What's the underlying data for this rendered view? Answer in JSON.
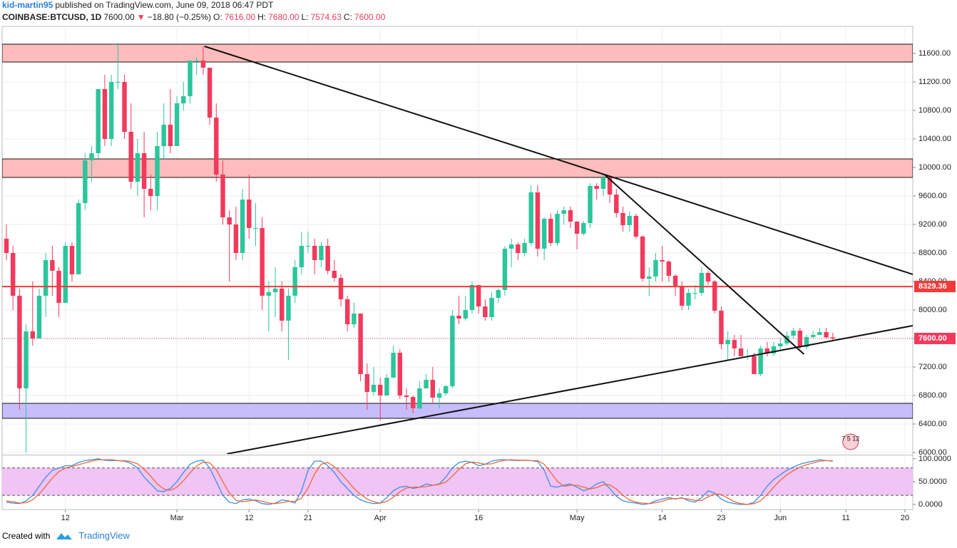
{
  "header": {
    "author": "kid-martin95",
    "published": "published on TradingView.com, June 09, 2018 06:47 PDT",
    "symbol": "COINBASE:BTCUSD, 1D",
    "last": "7600.00",
    "arrow": "▼",
    "change": "−18.80 (−0.25%)",
    "open_label": "O:",
    "open": "7616.00",
    "high_label": "H:",
    "high": "7680.00",
    "low_label": "L:",
    "low": "7574.63",
    "close_label": "C:",
    "close": "7600.00"
  },
  "chart_data": [
    {
      "type": "candlestick",
      "up_color": "#2bc69b",
      "down_color": "#f23a5d",
      "grid": true,
      "xlim": [
        -0.65,
        138.2
      ],
      "ylim": [
        5980,
        11980
      ],
      "xticks": [
        {
          "value": 9,
          "label": "12"
        },
        {
          "value": 26,
          "label": "Mar"
        },
        {
          "value": 37,
          "label": "12"
        },
        {
          "value": 46,
          "label": "21"
        },
        {
          "value": 57,
          "label": "Apr"
        },
        {
          "value": 72,
          "label": "16"
        },
        {
          "value": 87,
          "label": "May"
        },
        {
          "value": 100,
          "label": "14"
        },
        {
          "value": 109,
          "label": "23"
        },
        {
          "value": 118,
          "label": "Jun"
        },
        {
          "value": 128,
          "label": "11"
        },
        {
          "value": 137,
          "label": "20"
        }
      ],
      "yticks": [
        {
          "value": 6000,
          "label": "6000.00"
        },
        {
          "value": 6400,
          "label": "6400.00"
        },
        {
          "value": 6800,
          "label": "6800.00"
        },
        {
          "value": 7200,
          "label": "7200.00"
        },
        {
          "value": 7600,
          "label": "7600.00"
        },
        {
          "value": 8000,
          "label": "8000.00"
        },
        {
          "value": 8400,
          "label": "8400.00"
        },
        {
          "value": 8800,
          "label": "8800.00"
        },
        {
          "value": 9200,
          "label": "9200.00"
        },
        {
          "value": 9600,
          "label": "9600.00"
        },
        {
          "value": 10000,
          "label": "10000.00"
        },
        {
          "value": 10400,
          "label": "10400.00"
        },
        {
          "value": 10800,
          "label": "10800.00"
        },
        {
          "value": 11200,
          "label": "11200.00"
        },
        {
          "value": 11600,
          "label": "11600.00"
        }
      ],
      "candles": [
        [
          9000,
          9200,
          8700,
          8800
        ],
        [
          8800,
          8900,
          8000,
          8200
        ],
        [
          8200,
          8300,
          6600,
          6900
        ],
        [
          6900,
          7800,
          6000,
          7700
        ],
        [
          7700,
          8400,
          7500,
          7600
        ],
        [
          7600,
          8300,
          7600,
          8200
        ],
        [
          8200,
          8800,
          7900,
          8700
        ],
        [
          8700,
          8900,
          8200,
          8550
        ],
        [
          8550,
          8600,
          7900,
          8100
        ],
        [
          8100,
          8950,
          8100,
          8900
        ],
        [
          8900,
          8950,
          8400,
          8500
        ],
        [
          8500,
          9550,
          8500,
          9500
        ],
        [
          9500,
          10200,
          9400,
          10100
        ],
        [
          10100,
          10300,
          9800,
          10200
        ],
        [
          10200,
          11100,
          10100,
          11100
        ],
        [
          11100,
          11300,
          10300,
          10400
        ],
        [
          10400,
          11300,
          10300,
          11200
        ],
        [
          11200,
          11750,
          11100,
          11200
        ],
        [
          11200,
          11300,
          10400,
          10500
        ],
        [
          10500,
          10900,
          9700,
          9800
        ],
        [
          9800,
          10400,
          9600,
          10200
        ],
        [
          10200,
          10500,
          9300,
          9700
        ],
        [
          9700,
          9900,
          9400,
          9600
        ],
        [
          9600,
          10500,
          9400,
          10300
        ],
        [
          10300,
          10900,
          10100,
          10600
        ],
        [
          10600,
          11100,
          10200,
          10300
        ],
        [
          10300,
          11000,
          10300,
          10900
        ],
        [
          10900,
          11200,
          10800,
          11000
        ],
        [
          11000,
          11500,
          10900,
          11500
        ],
        [
          11500,
          11550,
          11300,
          11500
        ],
        [
          11500,
          11700,
          11300,
          11400
        ],
        [
          11400,
          11400,
          10600,
          10700
        ],
        [
          10700,
          10900,
          9800,
          9900
        ],
        [
          9900,
          10100,
          9200,
          9300
        ],
        [
          9300,
          9400,
          8400,
          9200
        ],
        [
          9200,
          9450,
          8700,
          8800
        ],
        [
          8800,
          9700,
          8700,
          9550
        ],
        [
          9550,
          9900,
          9000,
          9150
        ],
        [
          9150,
          9500,
          8900,
          9150
        ],
        [
          9150,
          9300,
          8000,
          8200
        ],
        [
          8200,
          8400,
          7700,
          8250
        ],
        [
          8250,
          8600,
          7900,
          8300
        ],
        [
          8300,
          8400,
          7700,
          7850
        ],
        [
          7850,
          8300,
          7300,
          8200
        ],
        [
          8200,
          8700,
          8100,
          8600
        ],
        [
          8600,
          9100,
          8500,
          8900
        ],
        [
          8900,
          9100,
          8800,
          8900
        ],
        [
          8900,
          9000,
          8500,
          8700
        ],
        [
          8700,
          8950,
          8600,
          8900
        ],
        [
          8900,
          9000,
          8500,
          8550
        ],
        [
          8550,
          8700,
          8400,
          8450
        ],
        [
          8450,
          8500,
          8050,
          8150
        ],
        [
          8150,
          8200,
          7700,
          7800
        ],
        [
          7800,
          8100,
          7750,
          7950
        ],
        [
          7950,
          7950,
          7000,
          7100
        ],
        [
          7100,
          7250,
          6600,
          6850
        ],
        [
          6850,
          7200,
          6800,
          6950
        ],
        [
          6950,
          7050,
          6450,
          6800
        ],
        [
          6800,
          7100,
          6800,
          7050
        ],
        [
          7050,
          7500,
          7050,
          7400
        ],
        [
          7400,
          7450,
          6750,
          6800
        ],
        [
          6800,
          6900,
          6600,
          6780
        ],
        [
          6780,
          6800,
          6550,
          6620
        ],
        [
          6620,
          7000,
          6600,
          6900
        ],
        [
          6900,
          7100,
          6900,
          7020
        ],
        [
          7020,
          7200,
          6700,
          6770
        ],
        [
          6770,
          6900,
          6620,
          6830
        ],
        [
          6830,
          6950,
          6800,
          6930
        ],
        [
          6930,
          8000,
          6900,
          7920
        ],
        [
          7920,
          8200,
          7800,
          7880
        ],
        [
          7880,
          8200,
          7850,
          8000
        ],
        [
          8000,
          8400,
          7950,
          8350
        ],
        [
          8350,
          8350,
          7950,
          8050
        ],
        [
          8050,
          8150,
          7850,
          7900
        ],
        [
          7900,
          8250,
          7850,
          8170
        ],
        [
          8170,
          8300,
          8100,
          8280
        ],
        [
          8280,
          8900,
          8200,
          8860
        ],
        [
          8860,
          9000,
          8600,
          8920
        ],
        [
          8920,
          8950,
          8700,
          8800
        ],
        [
          8800,
          9000,
          8750,
          8940
        ],
        [
          8940,
          9750,
          8900,
          9650
        ],
        [
          9650,
          9750,
          8750,
          8860
        ],
        [
          8860,
          9300,
          8700,
          9280
        ],
        [
          9280,
          9350,
          8900,
          8940
        ],
        [
          8940,
          9400,
          8900,
          9350
        ],
        [
          9350,
          9450,
          9200,
          9400
        ],
        [
          9400,
          9450,
          9150,
          9240
        ],
        [
          9240,
          9250,
          8850,
          9070
        ],
        [
          9070,
          9250,
          9050,
          9220
        ],
        [
          9220,
          9780,
          9150,
          9740
        ],
        [
          9740,
          9780,
          9550,
          9700
        ],
        [
          9700,
          9900,
          9600,
          9860
        ],
        [
          9860,
          9880,
          9500,
          9620
        ],
        [
          9620,
          9700,
          9300,
          9360
        ],
        [
          9360,
          9450,
          9100,
          9190
        ],
        [
          9190,
          9380,
          9100,
          9320
        ],
        [
          9320,
          9350,
          9000,
          9030
        ],
        [
          9030,
          9050,
          8400,
          8440
        ],
        [
          8440,
          8600,
          8200,
          8470
        ],
        [
          8470,
          8800,
          8400,
          8700
        ],
        [
          8700,
          8900,
          8400,
          8680
        ],
        [
          8680,
          8700,
          8400,
          8480
        ],
        [
          8480,
          8500,
          8200,
          8340
        ],
        [
          8340,
          8400,
          8000,
          8060
        ],
        [
          8060,
          8300,
          8000,
          8240
        ],
        [
          8240,
          8350,
          8150,
          8240
        ],
        [
          8240,
          8600,
          8200,
          8520
        ],
        [
          8520,
          8550,
          8350,
          8400
        ],
        [
          8400,
          8420,
          7950,
          7990
        ],
        [
          7990,
          8050,
          7450,
          7520
        ],
        [
          7520,
          7700,
          7300,
          7580
        ],
        [
          7580,
          7650,
          7350,
          7460
        ],
        [
          7460,
          7650,
          7350,
          7350
        ],
        [
          7350,
          7450,
          7300,
          7350
        ],
        [
          7350,
          7400,
          7100,
          7100
        ],
        [
          7100,
          7500,
          7070,
          7460
        ],
        [
          7460,
          7550,
          7350,
          7390
        ],
        [
          7390,
          7550,
          7350,
          7490
        ],
        [
          7490,
          7600,
          7450,
          7530
        ],
        [
          7530,
          7700,
          7500,
          7640
        ],
        [
          7640,
          7750,
          7600,
          7710
        ],
        [
          7710,
          7750,
          7450,
          7480
        ],
        [
          7480,
          7650,
          7450,
          7620
        ],
        [
          7620,
          7700,
          7600,
          7650
        ],
        [
          7650,
          7750,
          7650,
          7690
        ],
        [
          7690,
          7750,
          7600,
          7616
        ],
        [
          7616,
          7680,
          7574.63,
          7600
        ]
      ],
      "zones": [
        {
          "from": 11480,
          "to": 11730,
          "color": "#ffbcbc"
        },
        {
          "from": 9860,
          "to": 10120,
          "color": "#ffbcbc"
        },
        {
          "from": 6480,
          "to": 6690,
          "color": "#c8bdfb"
        }
      ],
      "level": {
        "value": 8329.36,
        "label": "8329.36",
        "color": "#f23a3a"
      },
      "last_price": {
        "value": 7600,
        "label": "7600.00",
        "color": "#f23a5d"
      },
      "trendlines": [
        {
          "x": [
            30.2,
            91.2
          ],
          "y": [
            11700,
            9900
          ]
        },
        {
          "x": [
            91.2,
            138.2
          ],
          "y": [
            9900,
            8500
          ]
        },
        {
          "x": [
            91.2,
            121.6
          ],
          "y": [
            9900,
            7380
          ]
        },
        {
          "x": [
            33.6,
            138.2
          ],
          "y": [
            5980,
            7780
          ]
        }
      ],
      "badge": "7 5 12"
    },
    {
      "type": "line",
      "ylim": [
        -11,
        106
      ],
      "yticks": [
        {
          "value": 100,
          "label": "100.0000"
        },
        {
          "value": 50,
          "label": "50.0000"
        },
        {
          "value": 0,
          "label": "0.0000"
        }
      ],
      "bands": [
        20,
        80
      ],
      "band_color": "#f0c4f5",
      "series": [
        {
          "color": "#3a8fe5",
          "values": [
            5,
            3,
            2,
            8,
            20,
            40,
            60,
            75,
            80,
            85,
            85,
            92,
            96,
            98,
            100,
            97,
            96,
            96,
            95,
            90,
            80,
            60,
            45,
            30,
            28,
            35,
            50,
            70,
            88,
            95,
            97,
            80,
            50,
            20,
            5,
            2,
            10,
            12,
            8,
            2,
            0,
            3,
            10,
            8,
            3,
            30,
            75,
            95,
            95,
            85,
            70,
            50,
            35,
            20,
            10,
            5,
            2,
            3,
            15,
            30,
            38,
            40,
            35,
            38,
            45,
            42,
            45,
            60,
            80,
            92,
            95,
            92,
            85,
            88,
            95,
            98,
            98,
            97,
            96,
            97,
            96,
            94,
            75,
            40,
            38,
            42,
            45,
            38,
            30,
            35,
            45,
            50,
            35,
            18,
            8,
            5,
            3,
            0,
            2,
            8,
            12,
            15,
            12,
            15,
            8,
            5,
            15,
            30,
            25,
            12,
            5,
            2,
            0,
            0,
            5,
            20,
            40,
            55,
            65,
            75,
            82,
            88,
            92,
            95,
            98,
            96,
            95
          ]
        },
        {
          "color": "#f0683a",
          "values": [
            8,
            6,
            3,
            4,
            10,
            23,
            40,
            58,
            72,
            80,
            83,
            87,
            91,
            95,
            98,
            98,
            98,
            96,
            96,
            94,
            89,
            77,
            62,
            45,
            34,
            31,
            38,
            52,
            69,
            84,
            93,
            91,
            76,
            50,
            25,
            9,
            6,
            8,
            10,
            7,
            3,
            2,
            4,
            7,
            7,
            14,
            36,
            67,
            88,
            92,
            83,
            68,
            52,
            35,
            22,
            12,
            6,
            3,
            7,
            16,
            28,
            36,
            38,
            38,
            39,
            42,
            44,
            49,
            62,
            77,
            89,
            93,
            91,
            88,
            89,
            94,
            97,
            98,
            97,
            97,
            96,
            96,
            88,
            70,
            51,
            40,
            42,
            42,
            38,
            34,
            37,
            43,
            43,
            34,
            20,
            10,
            5,
            3,
            2,
            4,
            7,
            12,
            13,
            14,
            12,
            9,
            9,
            17,
            23,
            22,
            14,
            6,
            2,
            0,
            2,
            8,
            22,
            38,
            53,
            65,
            74,
            82,
            87,
            91,
            95,
            96,
            96
          ]
        }
      ]
    }
  ],
  "footer": {
    "created": "Created with",
    "brand": "TradingView"
  }
}
